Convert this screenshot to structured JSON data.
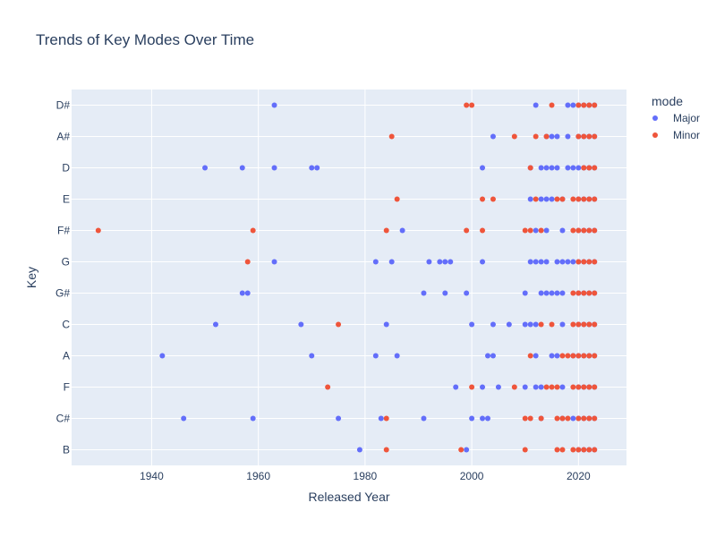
{
  "chart_data": {
    "type": "scatter",
    "title": "Trends of Key Modes Over Time",
    "xlabel": "Released Year",
    "ylabel": "Key",
    "xlim": [
      1925,
      2029
    ],
    "x_ticks": [
      1940,
      1960,
      1980,
      2000,
      2020
    ],
    "categories": [
      "B",
      "C#",
      "F",
      "A",
      "C",
      "G#",
      "G",
      "F#",
      "E",
      "D",
      "A#",
      "D#"
    ],
    "legend_title": "mode",
    "legend_position": "top-right",
    "grid": true,
    "series": [
      {
        "name": "Major",
        "color": "#636efa",
        "points": [
          {
            "x": 1963,
            "y": "D#"
          },
          {
            "x": 2012,
            "y": "D#"
          },
          {
            "x": 2018,
            "y": "D#"
          },
          {
            "x": 2019,
            "y": "D#"
          },
          {
            "x": 2020,
            "y": "D#"
          },
          {
            "x": 2021,
            "y": "D#"
          },
          {
            "x": 2022,
            "y": "D#"
          },
          {
            "x": 2023,
            "y": "D#"
          },
          {
            "x": 2004,
            "y": "A#"
          },
          {
            "x": 2014,
            "y": "A#"
          },
          {
            "x": 2015,
            "y": "A#"
          },
          {
            "x": 2016,
            "y": "A#"
          },
          {
            "x": 2018,
            "y": "A#"
          },
          {
            "x": 2020,
            "y": "A#"
          },
          {
            "x": 2021,
            "y": "A#"
          },
          {
            "x": 2022,
            "y": "A#"
          },
          {
            "x": 2023,
            "y": "A#"
          },
          {
            "x": 1950,
            "y": "D"
          },
          {
            "x": 1957,
            "y": "D"
          },
          {
            "x": 1963,
            "y": "D"
          },
          {
            "x": 1970,
            "y": "D"
          },
          {
            "x": 1971,
            "y": "D"
          },
          {
            "x": 2002,
            "y": "D"
          },
          {
            "x": 2011,
            "y": "D"
          },
          {
            "x": 2013,
            "y": "D"
          },
          {
            "x": 2014,
            "y": "D"
          },
          {
            "x": 2015,
            "y": "D"
          },
          {
            "x": 2016,
            "y": "D"
          },
          {
            "x": 2018,
            "y": "D"
          },
          {
            "x": 2019,
            "y": "D"
          },
          {
            "x": 2020,
            "y": "D"
          },
          {
            "x": 2021,
            "y": "D"
          },
          {
            "x": 2022,
            "y": "D"
          },
          {
            "x": 2023,
            "y": "D"
          },
          {
            "x": 2011,
            "y": "E"
          },
          {
            "x": 2013,
            "y": "E"
          },
          {
            "x": 2014,
            "y": "E"
          },
          {
            "x": 2015,
            "y": "E"
          },
          {
            "x": 2017,
            "y": "E"
          },
          {
            "x": 2020,
            "y": "E"
          },
          {
            "x": 2021,
            "y": "E"
          },
          {
            "x": 2022,
            "y": "E"
          },
          {
            "x": 2023,
            "y": "E"
          },
          {
            "x": 1987,
            "y": "F#"
          },
          {
            "x": 2012,
            "y": "F#"
          },
          {
            "x": 2014,
            "y": "F#"
          },
          {
            "x": 2017,
            "y": "F#"
          },
          {
            "x": 2020,
            "y": "F#"
          },
          {
            "x": 2021,
            "y": "F#"
          },
          {
            "x": 2022,
            "y": "F#"
          },
          {
            "x": 2023,
            "y": "F#"
          },
          {
            "x": 1963,
            "y": "G"
          },
          {
            "x": 1982,
            "y": "G"
          },
          {
            "x": 1985,
            "y": "G"
          },
          {
            "x": 1992,
            "y": "G"
          },
          {
            "x": 1994,
            "y": "G"
          },
          {
            "x": 1995,
            "y": "G"
          },
          {
            "x": 1996,
            "y": "G"
          },
          {
            "x": 2002,
            "y": "G"
          },
          {
            "x": 2011,
            "y": "G"
          },
          {
            "x": 2012,
            "y": "G"
          },
          {
            "x": 2013,
            "y": "G"
          },
          {
            "x": 2014,
            "y": "G"
          },
          {
            "x": 2016,
            "y": "G"
          },
          {
            "x": 2017,
            "y": "G"
          },
          {
            "x": 2018,
            "y": "G"
          },
          {
            "x": 2019,
            "y": "G"
          },
          {
            "x": 2020,
            "y": "G"
          },
          {
            "x": 2021,
            "y": "G"
          },
          {
            "x": 2022,
            "y": "G"
          },
          {
            "x": 2023,
            "y": "G"
          },
          {
            "x": 1957,
            "y": "G#"
          },
          {
            "x": 1958,
            "y": "G#"
          },
          {
            "x": 1991,
            "y": "G#"
          },
          {
            "x": 1995,
            "y": "G#"
          },
          {
            "x": 1999,
            "y": "G#"
          },
          {
            "x": 2010,
            "y": "G#"
          },
          {
            "x": 2013,
            "y": "G#"
          },
          {
            "x": 2014,
            "y": "G#"
          },
          {
            "x": 2015,
            "y": "G#"
          },
          {
            "x": 2016,
            "y": "G#"
          },
          {
            "x": 2017,
            "y": "G#"
          },
          {
            "x": 2020,
            "y": "G#"
          },
          {
            "x": 2021,
            "y": "G#"
          },
          {
            "x": 2022,
            "y": "G#"
          },
          {
            "x": 2023,
            "y": "G#"
          },
          {
            "x": 1952,
            "y": "C"
          },
          {
            "x": 1968,
            "y": "C"
          },
          {
            "x": 1984,
            "y": "C"
          },
          {
            "x": 2000,
            "y": "C"
          },
          {
            "x": 2004,
            "y": "C"
          },
          {
            "x": 2007,
            "y": "C"
          },
          {
            "x": 2010,
            "y": "C"
          },
          {
            "x": 2011,
            "y": "C"
          },
          {
            "x": 2012,
            "y": "C"
          },
          {
            "x": 2017,
            "y": "C"
          },
          {
            "x": 2020,
            "y": "C"
          },
          {
            "x": 2021,
            "y": "C"
          },
          {
            "x": 2022,
            "y": "C"
          },
          {
            "x": 2023,
            "y": "C"
          },
          {
            "x": 1942,
            "y": "A"
          },
          {
            "x": 1970,
            "y": "A"
          },
          {
            "x": 1982,
            "y": "A"
          },
          {
            "x": 1986,
            "y": "A"
          },
          {
            "x": 2003,
            "y": "A"
          },
          {
            "x": 2004,
            "y": "A"
          },
          {
            "x": 2012,
            "y": "A"
          },
          {
            "x": 2015,
            "y": "A"
          },
          {
            "x": 2016,
            "y": "A"
          },
          {
            "x": 2019,
            "y": "A"
          },
          {
            "x": 2020,
            "y": "A"
          },
          {
            "x": 2021,
            "y": "A"
          },
          {
            "x": 2022,
            "y": "A"
          },
          {
            "x": 2023,
            "y": "A"
          },
          {
            "x": 1997,
            "y": "F"
          },
          {
            "x": 2002,
            "y": "F"
          },
          {
            "x": 2005,
            "y": "F"
          },
          {
            "x": 2010,
            "y": "F"
          },
          {
            "x": 2012,
            "y": "F"
          },
          {
            "x": 2013,
            "y": "F"
          },
          {
            "x": 2017,
            "y": "F"
          },
          {
            "x": 2020,
            "y": "F"
          },
          {
            "x": 2021,
            "y": "F"
          },
          {
            "x": 2022,
            "y": "F"
          },
          {
            "x": 2023,
            "y": "F"
          },
          {
            "x": 1946,
            "y": "C#"
          },
          {
            "x": 1959,
            "y": "C#"
          },
          {
            "x": 1975,
            "y": "C#"
          },
          {
            "x": 1983,
            "y": "C#"
          },
          {
            "x": 1991,
            "y": "C#"
          },
          {
            "x": 2000,
            "y": "C#"
          },
          {
            "x": 2002,
            "y": "C#"
          },
          {
            "x": 2003,
            "y": "C#"
          },
          {
            "x": 2013,
            "y": "C#"
          },
          {
            "x": 2017,
            "y": "C#"
          },
          {
            "x": 2019,
            "y": "C#"
          },
          {
            "x": 2020,
            "y": "C#"
          },
          {
            "x": 2021,
            "y": "C#"
          },
          {
            "x": 2022,
            "y": "C#"
          },
          {
            "x": 2023,
            "y": "C#"
          },
          {
            "x": 1979,
            "y": "B"
          },
          {
            "x": 1999,
            "y": "B"
          },
          {
            "x": 2020,
            "y": "B"
          },
          {
            "x": 2021,
            "y": "B"
          },
          {
            "x": 2022,
            "y": "B"
          },
          {
            "x": 2023,
            "y": "B"
          }
        ]
      },
      {
        "name": "Minor",
        "color": "#ef553b",
        "points": [
          {
            "x": 1999,
            "y": "D#"
          },
          {
            "x": 2000,
            "y": "D#"
          },
          {
            "x": 2015,
            "y": "D#"
          },
          {
            "x": 2020,
            "y": "D#"
          },
          {
            "x": 2021,
            "y": "D#"
          },
          {
            "x": 2022,
            "y": "D#"
          },
          {
            "x": 2023,
            "y": "D#"
          },
          {
            "x": 1985,
            "y": "A#"
          },
          {
            "x": 2008,
            "y": "A#"
          },
          {
            "x": 2012,
            "y": "A#"
          },
          {
            "x": 2014,
            "y": "A#"
          },
          {
            "x": 2020,
            "y": "A#"
          },
          {
            "x": 2021,
            "y": "A#"
          },
          {
            "x": 2022,
            "y": "A#"
          },
          {
            "x": 2023,
            "y": "A#"
          },
          {
            "x": 2011,
            "y": "D"
          },
          {
            "x": 2021,
            "y": "D"
          },
          {
            "x": 2022,
            "y": "D"
          },
          {
            "x": 2023,
            "y": "D"
          },
          {
            "x": 1986,
            "y": "E"
          },
          {
            "x": 2002,
            "y": "E"
          },
          {
            "x": 2004,
            "y": "E"
          },
          {
            "x": 2012,
            "y": "E"
          },
          {
            "x": 2016,
            "y": "E"
          },
          {
            "x": 2017,
            "y": "E"
          },
          {
            "x": 2019,
            "y": "E"
          },
          {
            "x": 2020,
            "y": "E"
          },
          {
            "x": 2021,
            "y": "E"
          },
          {
            "x": 2022,
            "y": "E"
          },
          {
            "x": 2023,
            "y": "E"
          },
          {
            "x": 1930,
            "y": "F#"
          },
          {
            "x": 1959,
            "y": "F#"
          },
          {
            "x": 1984,
            "y": "F#"
          },
          {
            "x": 1999,
            "y": "F#"
          },
          {
            "x": 2002,
            "y": "F#"
          },
          {
            "x": 2010,
            "y": "F#"
          },
          {
            "x": 2011,
            "y": "F#"
          },
          {
            "x": 2013,
            "y": "F#"
          },
          {
            "x": 2019,
            "y": "F#"
          },
          {
            "x": 2020,
            "y": "F#"
          },
          {
            "x": 2021,
            "y": "F#"
          },
          {
            "x": 2022,
            "y": "F#"
          },
          {
            "x": 2023,
            "y": "F#"
          },
          {
            "x": 1958,
            "y": "G"
          },
          {
            "x": 2020,
            "y": "G"
          },
          {
            "x": 2021,
            "y": "G"
          },
          {
            "x": 2022,
            "y": "G"
          },
          {
            "x": 2023,
            "y": "G"
          },
          {
            "x": 2019,
            "y": "G#"
          },
          {
            "x": 2020,
            "y": "G#"
          },
          {
            "x": 2021,
            "y": "G#"
          },
          {
            "x": 2022,
            "y": "G#"
          },
          {
            "x": 2023,
            "y": "G#"
          },
          {
            "x": 1975,
            "y": "C"
          },
          {
            "x": 2013,
            "y": "C"
          },
          {
            "x": 2015,
            "y": "C"
          },
          {
            "x": 2019,
            "y": "C"
          },
          {
            "x": 2020,
            "y": "C"
          },
          {
            "x": 2021,
            "y": "C"
          },
          {
            "x": 2022,
            "y": "C"
          },
          {
            "x": 2023,
            "y": "C"
          },
          {
            "x": 2011,
            "y": "A"
          },
          {
            "x": 2017,
            "y": "A"
          },
          {
            "x": 2018,
            "y": "A"
          },
          {
            "x": 2019,
            "y": "A"
          },
          {
            "x": 2020,
            "y": "A"
          },
          {
            "x": 2021,
            "y": "A"
          },
          {
            "x": 2022,
            "y": "A"
          },
          {
            "x": 2023,
            "y": "A"
          },
          {
            "x": 1973,
            "y": "F"
          },
          {
            "x": 2000,
            "y": "F"
          },
          {
            "x": 2008,
            "y": "F"
          },
          {
            "x": 2014,
            "y": "F"
          },
          {
            "x": 2015,
            "y": "F"
          },
          {
            "x": 2016,
            "y": "F"
          },
          {
            "x": 2019,
            "y": "F"
          },
          {
            "x": 2020,
            "y": "F"
          },
          {
            "x": 2021,
            "y": "F"
          },
          {
            "x": 2022,
            "y": "F"
          },
          {
            "x": 2023,
            "y": "F"
          },
          {
            "x": 1984,
            "y": "C#"
          },
          {
            "x": 2010,
            "y": "C#"
          },
          {
            "x": 2011,
            "y": "C#"
          },
          {
            "x": 2013,
            "y": "C#"
          },
          {
            "x": 2016,
            "y": "C#"
          },
          {
            "x": 2017,
            "y": "C#"
          },
          {
            "x": 2018,
            "y": "C#"
          },
          {
            "x": 2020,
            "y": "C#"
          },
          {
            "x": 2021,
            "y": "C#"
          },
          {
            "x": 2022,
            "y": "C#"
          },
          {
            "x": 2023,
            "y": "C#"
          },
          {
            "x": 1984,
            "y": "B"
          },
          {
            "x": 1998,
            "y": "B"
          },
          {
            "x": 2010,
            "y": "B"
          },
          {
            "x": 2016,
            "y": "B"
          },
          {
            "x": 2017,
            "y": "B"
          },
          {
            "x": 2019,
            "y": "B"
          },
          {
            "x": 2020,
            "y": "B"
          },
          {
            "x": 2021,
            "y": "B"
          },
          {
            "x": 2022,
            "y": "B"
          },
          {
            "x": 2023,
            "y": "B"
          }
        ]
      }
    ]
  }
}
